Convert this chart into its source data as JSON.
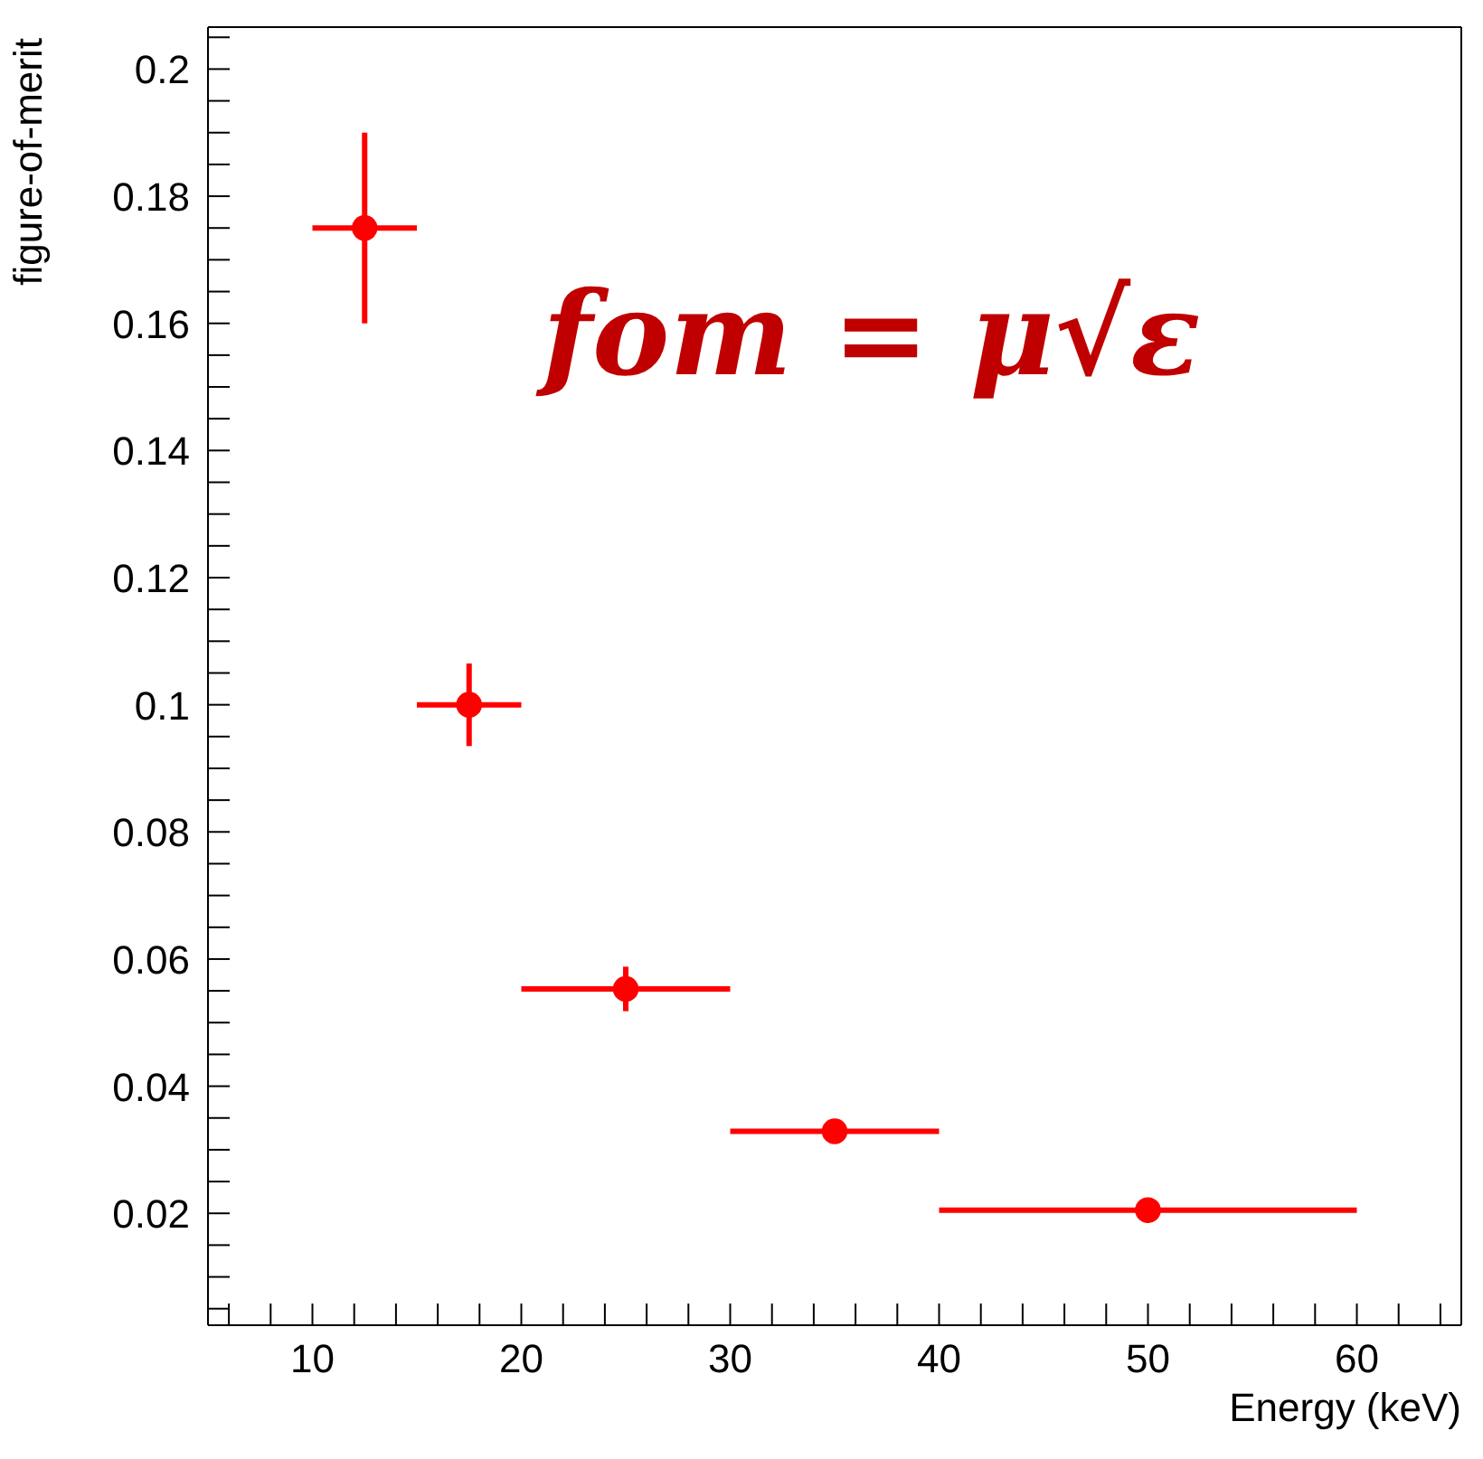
{
  "chart_data": {
    "type": "scatter",
    "xlabel": "Energy (keV)",
    "ylabel": "figure-of-merit",
    "annotations": [
      "fom = μ√ε"
    ],
    "x": [
      12.5,
      17.5,
      25,
      35,
      50
    ],
    "series": [
      {
        "color": "#ff0000",
        "values": [
          0.175,
          0.1,
          0.0553,
          0.0329,
          0.0205
        ],
        "errors": [
          0.015,
          0.0065,
          0.0035,
          0.0015,
          0.001
        ],
        "xerrors": [
          2.5,
          2.5,
          5,
          5,
          10
        ]
      }
    ],
    "xlim": [
      5,
      65
    ],
    "ylim": [
      0.0024,
      0.2066
    ],
    "xticks": [
      {
        "value": 6,
        "label": null
      },
      {
        "value": 8,
        "label": null
      },
      10,
      {
        "value": 12,
        "label": null
      },
      {
        "value": 14,
        "label": null
      },
      {
        "value": 16,
        "label": null
      },
      {
        "value": 18,
        "label": null
      },
      20,
      {
        "value": 22,
        "label": null
      },
      {
        "value": 24,
        "label": null
      },
      {
        "value": 26,
        "label": null
      },
      {
        "value": 28,
        "label": null
      },
      30,
      {
        "value": 32,
        "label": null
      },
      {
        "value": 34,
        "label": null
      },
      {
        "value": 36,
        "label": null
      },
      {
        "value": 38,
        "label": null
      },
      40,
      {
        "value": 42,
        "label": null
      },
      {
        "value": 44,
        "label": null
      },
      {
        "value": 46,
        "label": null
      },
      {
        "value": 48,
        "label": null
      },
      50,
      {
        "value": 52,
        "label": null
      },
      {
        "value": 54,
        "label": null
      },
      {
        "value": 56,
        "label": null
      },
      {
        "value": 58,
        "label": null
      },
      60,
      {
        "value": 62,
        "label": null
      },
      {
        "value": 64,
        "label": null
      }
    ],
    "yticks": [
      {
        "value": 0.005,
        "label": null
      },
      {
        "value": 0.01,
        "label": null
      },
      {
        "value": 0.015,
        "label": null
      },
      0.02,
      {
        "value": 0.025,
        "label": null
      },
      {
        "value": 0.03,
        "label": null
      },
      {
        "value": 0.035,
        "label": null
      },
      0.04,
      {
        "value": 0.045,
        "label": null
      },
      {
        "value": 0.05,
        "label": null
      },
      {
        "value": 0.055,
        "label": null
      },
      0.06,
      {
        "value": 0.065,
        "label": null
      },
      {
        "value": 0.07,
        "label": null
      },
      {
        "value": 0.075,
        "label": null
      },
      0.08,
      {
        "value": 0.085,
        "label": null
      },
      {
        "value": 0.09,
        "label": null
      },
      {
        "value": 0.095,
        "label": null
      },
      0.1,
      {
        "value": 0.105,
        "label": null
      },
      {
        "value": 0.11,
        "label": null
      },
      {
        "value": 0.115,
        "label": null
      },
      0.12,
      {
        "value": 0.125,
        "label": null
      },
      {
        "value": 0.13,
        "label": null
      },
      {
        "value": 0.135,
        "label": null
      },
      0.14,
      {
        "value": 0.145,
        "label": null
      },
      {
        "value": 0.15,
        "label": null
      },
      {
        "value": 0.155,
        "label": null
      },
      0.16,
      {
        "value": 0.165,
        "label": null
      },
      {
        "value": 0.17,
        "label": null
      },
      {
        "value": 0.175,
        "label": null
      },
      0.18,
      {
        "value": 0.185,
        "label": null
      },
      {
        "value": 0.19,
        "label": null
      },
      {
        "value": 0.195,
        "label": null
      },
      0.2,
      {
        "value": 0.205,
        "label": null
      }
    ],
    "marker": "circle",
    "grid": false,
    "legend": false
  }
}
